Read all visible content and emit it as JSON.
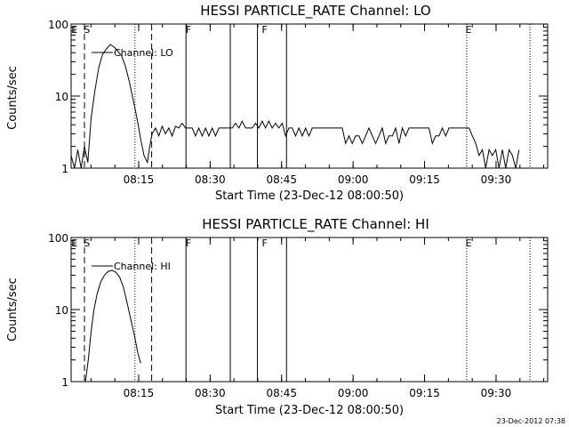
{
  "chart_data": [
    {
      "type": "line",
      "title": "HESSI PARTICLE_RATE Channel: LO",
      "xlabel": "Start Time (23-Dec-12 08:00:50)",
      "ylabel": "Counts/sec",
      "x_unit": "minutes",
      "xlim": [
        0.0,
        100.0
      ],
      "ylim": [
        1,
        100
      ],
      "yscale": "log",
      "xticks": [
        {
          "value": 14.17,
          "label": "08:15"
        },
        {
          "value": 29.17,
          "label": "08:30"
        },
        {
          "value": 44.17,
          "label": "08:45"
        },
        {
          "value": 59.17,
          "label": "09:00"
        },
        {
          "value": 74.17,
          "label": "09:15"
        },
        {
          "value": 89.17,
          "label": "09:30"
        }
      ],
      "yticks": [
        {
          "value": 1,
          "label": "1"
        },
        {
          "value": 10,
          "label": "10"
        },
        {
          "value": 100,
          "label": "100"
        }
      ],
      "series": [
        {
          "name": "Channel: LO",
          "color": "#000000",
          "x": [
            0,
            0.7,
            1.4,
            2.1,
            2.8,
            3.5,
            4.2,
            5.0,
            5.8,
            6.6,
            7.4,
            8.2,
            9.0,
            9.8,
            10.6,
            11.4,
            12.2,
            13.0,
            13.8,
            14.6,
            15.3,
            16.0,
            16.5,
            17.0,
            17.7,
            18.4,
            19.1,
            19.8,
            20.5,
            21.2,
            21.9,
            22.6,
            23.3,
            24.0,
            24.7,
            25.4,
            26.1,
            26.8,
            27.5,
            28.2,
            28.9,
            29.6,
            30.3,
            31.0,
            31.7,
            32.4,
            33.1,
            33.8,
            34.5,
            35.2,
            35.9,
            36.6,
            37.3,
            38.0,
            38.7,
            39.4,
            40.1,
            40.8,
            41.5,
            42.2,
            42.9,
            43.6,
            44.3,
            45.0,
            45.7,
            46.4,
            47.1,
            47.8,
            48.5,
            49.2,
            49.9,
            50.6,
            51.3,
            52.0,
            52.7,
            53.4,
            54.1,
            54.8,
            55.5,
            56.2,
            56.9,
            57.6,
            58.3,
            59.0,
            59.7,
            60.4,
            61.1,
            61.8,
            62.5,
            63.2,
            63.9,
            64.6,
            65.3,
            66.0,
            66.7,
            67.4,
            68.1,
            68.8,
            69.5,
            70.2,
            70.9,
            71.6,
            72.3,
            73.0,
            73.7,
            74.4,
            75.1,
            75.8,
            76.5,
            77.2,
            77.9,
            78.6,
            79.3,
            80.0,
            80.7,
            81.4,
            82.1,
            82.8,
            83.5,
            84.2,
            84.9,
            85.6,
            86.3,
            87.0,
            87.7,
            88.4,
            89.1,
            89.8,
            90.5,
            91.2,
            91.9,
            92.6,
            93.3,
            94.0
          ],
          "values": [
            1.5,
            1,
            1.8,
            1,
            2,
            1.2,
            5,
            12,
            25,
            38,
            45,
            52,
            48,
            42,
            36,
            26,
            16,
            9,
            5,
            2.5,
            1.5,
            1.2,
            2,
            3,
            3.6,
            2.8,
            3.8,
            3,
            3.6,
            2.8,
            3.8,
            3.6,
            4.2,
            3.6,
            3.6,
            3.6,
            2.8,
            3.6,
            2.8,
            3.6,
            2.8,
            3.6,
            2.8,
            3.6,
            3.6,
            3.6,
            3.6,
            3.6,
            4.2,
            3.6,
            4.5,
            3.6,
            3.6,
            3.6,
            4.2,
            3.6,
            4.5,
            3.6,
            4.5,
            3.6,
            4.2,
            3.6,
            4.2,
            2.8,
            3.6,
            3.6,
            2.8,
            3.6,
            2.8,
            3.6,
            2.8,
            3.6,
            3.6,
            3.6,
            3.6,
            3.6,
            3.6,
            3.6,
            3.6,
            3.6,
            3.6,
            2.2,
            2.8,
            2.2,
            2.8,
            2.8,
            2.2,
            2.8,
            3.6,
            2.8,
            2.2,
            2.8,
            3.6,
            2.2,
            2.8,
            2.8,
            3.6,
            2.2,
            3.6,
            2.8,
            3.6,
            3.6,
            3.6,
            3.6,
            3.6,
            3.6,
            3.6,
            2.2,
            2.8,
            2.8,
            3.6,
            2.8,
            3.6,
            3.6,
            3.6,
            3.6,
            3.6,
            3.6,
            3.6,
            2.8,
            2.2,
            1.5,
            1.8,
            1,
            1.8,
            1.5,
            1.8,
            1,
            1.8,
            1,
            1.8,
            1.5,
            1,
            1.8
          ]
        }
      ],
      "markers": {
        "labels": [
          {
            "x": 0.7,
            "text": "E"
          },
          {
            "x": 3.3,
            "text": "S"
          },
          {
            "x": 24.6,
            "text": "F"
          },
          {
            "x": 40.6,
            "text": "F"
          },
          {
            "x": 83.4,
            "text": "E"
          }
        ],
        "dashed": [
          2.8,
          16.9
        ],
        "dotted": [
          13.4,
          96.3
        ],
        "solid": [
          24.1,
          33.4,
          39.1,
          45.2
        ],
        "dotted_right": [
          83.0
        ]
      }
    },
    {
      "type": "line",
      "title": "HESSI PARTICLE_RATE Channel: HI",
      "xlabel": "Start Time (23-Dec-12 08:00:50)",
      "ylabel": "Counts/sec",
      "x_unit": "minutes",
      "xlim": [
        0.0,
        100.0
      ],
      "ylim": [
        1,
        100
      ],
      "yscale": "log",
      "xticks": [
        {
          "value": 14.17,
          "label": "08:15"
        },
        {
          "value": 29.17,
          "label": "08:30"
        },
        {
          "value": 44.17,
          "label": "08:45"
        },
        {
          "value": 59.17,
          "label": "09:00"
        },
        {
          "value": 74.17,
          "label": "09:15"
        },
        {
          "value": 89.17,
          "label": "09:30"
        }
      ],
      "yticks": [
        {
          "value": 1,
          "label": "1"
        },
        {
          "value": 10,
          "label": "10"
        },
        {
          "value": 100,
          "label": "100"
        }
      ],
      "series": [
        {
          "name": "Channel: HI",
          "color": "#000000",
          "x": [
            3.0,
            3.6,
            4.2,
            4.8,
            5.5,
            6.2,
            7.0,
            7.8,
            8.6,
            9.4,
            10.2,
            11.0,
            11.8,
            12.6,
            13.4,
            14.0,
            14.6
          ],
          "values": [
            1,
            2,
            5,
            10,
            17,
            24,
            30,
            34,
            35,
            33,
            28,
            20,
            12,
            7,
            4,
            2.5,
            1.8
          ]
        }
      ],
      "markers": {
        "labels": [
          {
            "x": 0.7,
            "text": "E"
          },
          {
            "x": 3.3,
            "text": "S"
          },
          {
            "x": 24.6,
            "text": "F"
          },
          {
            "x": 40.6,
            "text": "F"
          },
          {
            "x": 83.4,
            "text": "E"
          }
        ],
        "dashed": [
          2.8,
          16.9
        ],
        "dotted": [
          13.4,
          96.3
        ],
        "solid": [
          24.1,
          33.4,
          39.1,
          45.2
        ],
        "dotted_right": [
          83.0
        ]
      }
    }
  ],
  "timestamp": "23-Dec-2012 07:38"
}
